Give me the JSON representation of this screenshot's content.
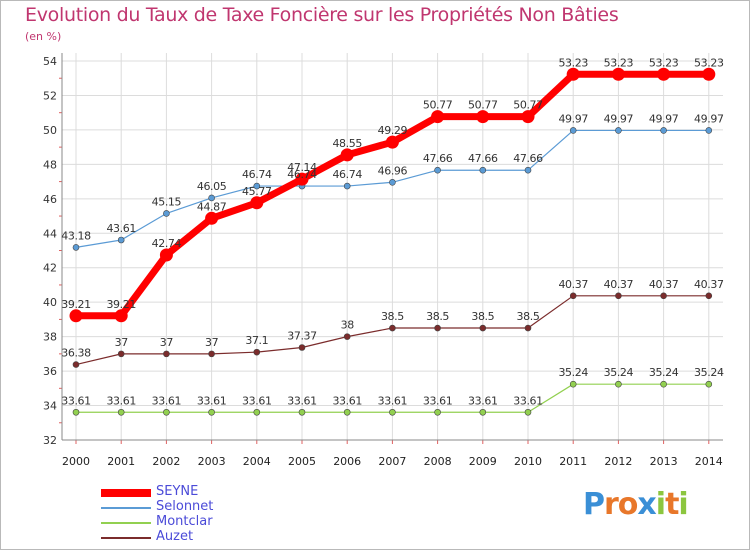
{
  "header": {
    "title": "Evolution du Taux de Taxe Foncière sur les Propriétés Non Bâties",
    "subtitle": "(en %)"
  },
  "logo": {
    "text": "Proxiti",
    "letters": [
      {
        "ch": "P",
        "color": "#3a8fd6"
      },
      {
        "ch": "r",
        "color": "#e8772a"
      },
      {
        "ch": "o",
        "color": "#e8772a"
      },
      {
        "ch": "x",
        "color": "#3a8fd6"
      },
      {
        "ch": "i",
        "color": "#8cc63f"
      },
      {
        "ch": "t",
        "color": "#e8772a"
      },
      {
        "ch": "i",
        "color": "#8cc63f"
      }
    ]
  },
  "chart_data": {
    "type": "line",
    "x": [
      "2000",
      "2001",
      "2002",
      "2003",
      "2004",
      "2005",
      "2006",
      "2007",
      "2008",
      "2009",
      "2010",
      "2011",
      "2012",
      "2013",
      "2014"
    ],
    "ylim": [
      32,
      54
    ],
    "yticks": [
      32,
      34,
      36,
      38,
      40,
      42,
      44,
      46,
      48,
      50,
      52,
      54
    ],
    "grid": true,
    "legend_position": "bottom-left",
    "series": [
      {
        "name": "SEYNE",
        "color": "#ff0000",
        "values": [
          39.21,
          39.21,
          42.74,
          44.87,
          45.77,
          47.14,
          48.55,
          49.29,
          50.77,
          50.77,
          50.77,
          53.23,
          53.23,
          53.23,
          53.23
        ],
        "labels": [
          "39.21",
          "39.21",
          "42.74",
          "44.87",
          "45.77",
          "47.14",
          "48.55",
          "49.29",
          "50.77",
          "50.77",
          "50.77",
          "53.23",
          "53.23",
          "53.23",
          "53.23"
        ]
      },
      {
        "name": "Selonnet",
        "color": "#5b9bd5",
        "values": [
          43.18,
          43.61,
          45.15,
          46.05,
          46.74,
          46.74,
          46.74,
          46.96,
          47.66,
          47.66,
          47.66,
          49.97,
          49.97,
          49.97,
          49.97
        ],
        "labels": [
          "43.18",
          "43.61",
          "45.15",
          "46.05",
          "46.74",
          "46.74",
          "46.74",
          "46.96",
          "47.66",
          "47.66",
          "47.66",
          "49.97",
          "49.97",
          "49.97",
          "49.97"
        ]
      },
      {
        "name": "Montclar",
        "color": "#92d050",
        "values": [
          33.61,
          33.61,
          33.61,
          33.61,
          33.61,
          33.61,
          33.61,
          33.61,
          33.61,
          33.61,
          33.61,
          35.24,
          35.24,
          35.24,
          35.24
        ],
        "labels": [
          "33.61",
          "33.61",
          "33.61",
          "33.61",
          "33.61",
          "33.61",
          "33.61",
          "33.61",
          "33.61",
          "33.61",
          "33.61",
          "35.24",
          "35.24",
          "35.24",
          "35.24"
        ]
      },
      {
        "name": "Auzet",
        "color": "#7b2c2c",
        "values": [
          36.38,
          37,
          37,
          37,
          37.1,
          37.37,
          38,
          38.5,
          38.5,
          38.5,
          38.5,
          40.37,
          40.37,
          40.37,
          40.37
        ],
        "labels": [
          "36.38",
          "37",
          "37",
          "37",
          "37.1",
          "37.37",
          "38",
          "38.5",
          "38.5",
          "38.5",
          "38.5",
          "40.37",
          "40.37",
          "40.37",
          "40.37"
        ]
      }
    ]
  }
}
